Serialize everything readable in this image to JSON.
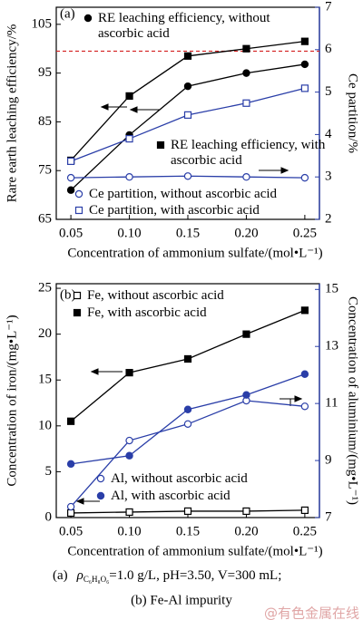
{
  "chart_data": [
    {
      "type": "line",
      "panel": "(a)",
      "xlabel": "Concentration of ammonium sulfate/(mol•L⁻¹)",
      "ylabel": "Rare earth leaching efficiency/%",
      "y2label": "Ce partition/%",
      "x": [
        0.05,
        0.1,
        0.15,
        0.2,
        0.25
      ],
      "xlim": [
        0.0375,
        0.2625
      ],
      "xticks": [
        0.05,
        {
          "value": 0.1,
          "label": "0.10"
        },
        0.15,
        {
          "value": 0.2,
          "label": "0.20"
        },
        0.25
      ],
      "ylim": [
        65,
        108.5
      ],
      "yticks": [
        65,
        75,
        85,
        95,
        105
      ],
      "y2lim": [
        2,
        7
      ],
      "y2ticks": [
        2,
        3,
        4,
        5,
        6,
        7
      ],
      "hline": {
        "value": 99.5,
        "color": "#d42020"
      },
      "series": [
        {
          "name": "RE leaching efficiency, without ascorbic acid",
          "color": "#000000",
          "marker": "circle",
          "filled": true,
          "values": [
            71.0,
            82.3,
            92.3,
            95.0,
            96.8
          ]
        },
        {
          "name": "RE leaching efficiency, with ascorbic acid",
          "color": "#000000",
          "marker": "square",
          "filled": true,
          "values": [
            77.1,
            90.3,
            98.5,
            100.0,
            101.5
          ]
        },
        {
          "name": "Ce partition, without ascorbic acid",
          "color": "#2a3ea8",
          "marker": "circle",
          "filled": false,
          "axis": "y2",
          "values": [
            2.98,
            3.0,
            3.02,
            3.0,
            2.98
          ]
        },
        {
          "name": "Ce partition, with ascorbic acid",
          "color": "#2a3ea8",
          "marker": "square",
          "filled": false,
          "axis": "y2",
          "values": [
            3.37,
            3.9,
            4.46,
            4.74,
            5.09
          ]
        }
      ]
    },
    {
      "type": "line",
      "panel": "(b)",
      "xlabel": "Concentration of ammonium sulfate/(mol•L⁻¹)",
      "ylabel": "Concentration of iron/(mg•L⁻¹)",
      "y2label": "Concentration of aluminium/(mg•L⁻¹)",
      "x": [
        0.05,
        0.1,
        0.15,
        0.2,
        0.25
      ],
      "xlim": [
        0.0375,
        0.2625
      ],
      "xticks": [
        0.05,
        {
          "value": 0.1,
          "label": "0.10"
        },
        0.15,
        {
          "value": 0.2,
          "label": "0.20"
        },
        0.25
      ],
      "ylim": [
        0,
        25.5
      ],
      "yticks": [
        0,
        5,
        10,
        15,
        20,
        25
      ],
      "y2lim": [
        7,
        15.2
      ],
      "y2ticks": [
        7,
        9,
        11,
        13,
        15
      ],
      "series": [
        {
          "name": "Fe, without ascorbic acid",
          "color": "#000000",
          "marker": "square",
          "filled": false,
          "values": [
            0.5,
            0.6,
            0.7,
            0.7,
            0.8
          ]
        },
        {
          "name": "Fe, with ascorbic acid",
          "color": "#000000",
          "marker": "square",
          "filled": true,
          "values": [
            10.5,
            15.8,
            17.3,
            20.0,
            22.6
          ]
        },
        {
          "name": "Al, without ascorbic acid",
          "color": "#2a3ea8",
          "marker": "circle",
          "filled": false,
          "axis": "y2",
          "values": [
            7.38,
            9.7,
            10.28,
            11.1,
            10.9
          ]
        },
        {
          "name": "Al, with ascorbic acid",
          "color": "#2a3ea8",
          "marker": "circle",
          "filled": true,
          "axis": "y2",
          "values": [
            8.88,
            9.17,
            10.79,
            11.3,
            12.03
          ]
        }
      ]
    }
  ],
  "caption": {
    "label": "(a)",
    "symbol": "ρ",
    "subscript": "C₆H₈O₆",
    "rest": "=1.0  g/L,  pH=3.50,  V=300  mL;",
    "line2": "(b) Fe-Al impurity"
  },
  "watermark": "@有色金属在线"
}
